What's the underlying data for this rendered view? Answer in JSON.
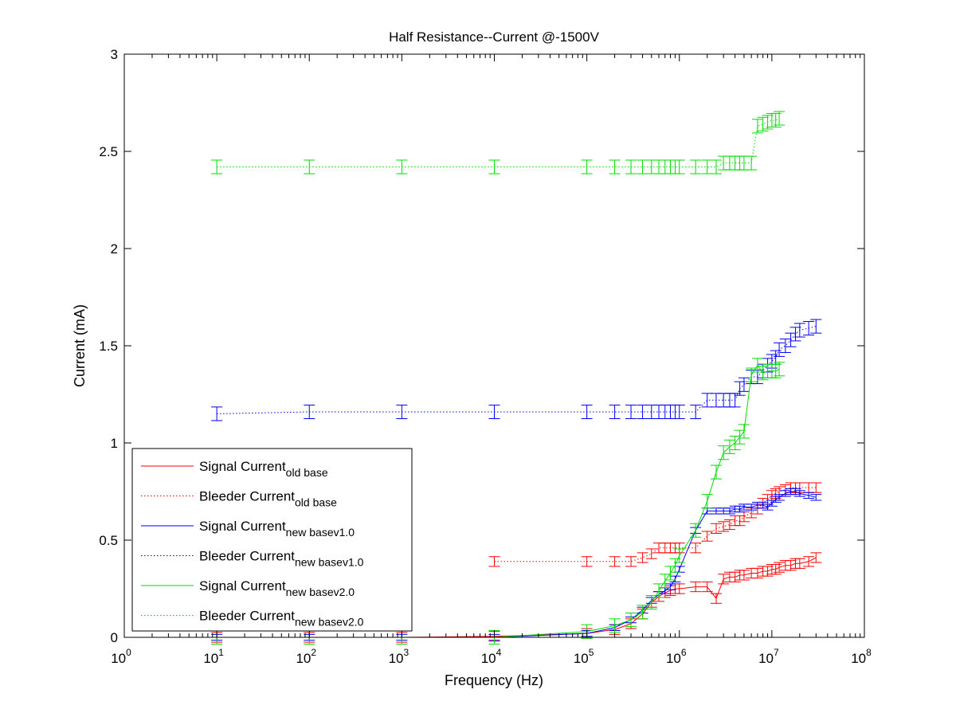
{
  "chart_data": {
    "type": "line",
    "title": "Half Resistance--Current @-1500V",
    "xlabel": "Frequency (Hz)",
    "ylabel": "Current (mA)",
    "xscale": "log",
    "xlim": [
      1,
      100000000
    ],
    "ylim": [
      0,
      3
    ],
    "x_ticks": [
      {
        "base": "10",
        "exp": "0",
        "value": 1
      },
      {
        "base": "10",
        "exp": "1",
        "value": 10
      },
      {
        "base": "10",
        "exp": "2",
        "value": 100
      },
      {
        "base": "10",
        "exp": "3",
        "value": 1000
      },
      {
        "base": "10",
        "exp": "4",
        "value": 10000
      },
      {
        "base": "10",
        "exp": "5",
        "value": 100000
      },
      {
        "base": "10",
        "exp": "6",
        "value": 1000000
      },
      {
        "base": "10",
        "exp": "7",
        "value": 10000000
      },
      {
        "base": "10",
        "exp": "8",
        "value": 100000000
      }
    ],
    "y_ticks": [
      {
        "label": "0",
        "value": 0
      },
      {
        "label": "0.5",
        "value": 0.5
      },
      {
        "label": "1",
        "value": 1
      },
      {
        "label": "1.5",
        "value": 1.5
      },
      {
        "label": "2",
        "value": 2
      },
      {
        "label": "2.5",
        "value": 2.5
      },
      {
        "label": "3",
        "value": 3
      }
    ],
    "grid": false,
    "legend_position": "bottom-left",
    "series": [
      {
        "name": "Signal Current",
        "subscript": "old base",
        "color": "#ff0000",
        "style": "solid",
        "x": [
          10,
          100,
          1000,
          10000,
          100000,
          200000,
          300000,
          400000,
          500000,
          600000,
          700000,
          800000,
          900000,
          1000000,
          1500000,
          2000000,
          2500000,
          3000000,
          3500000,
          4000000,
          4500000,
          5000000,
          6000000,
          7000000,
          8000000,
          9000000,
          10000000,
          11000000,
          12000000,
          14000000,
          16000000,
          18000000,
          20000000,
          25000000,
          30000000
        ],
        "y": [
          0.0,
          0.0,
          0.0,
          0.005,
          0.02,
          0.04,
          0.07,
          0.12,
          0.18,
          0.21,
          0.23,
          0.24,
          0.25,
          0.25,
          0.26,
          0.26,
          0.2,
          0.3,
          0.31,
          0.31,
          0.32,
          0.32,
          0.33,
          0.33,
          0.34,
          0.34,
          0.35,
          0.35,
          0.36,
          0.37,
          0.37,
          0.38,
          0.38,
          0.39,
          0.41
        ],
        "err": 0.025
      },
      {
        "name": "Bleeder Current",
        "subscript": "old base",
        "color": "#ff0000",
        "style": "dotted",
        "x": [
          10000,
          100000,
          200000,
          300000,
          400000,
          500000,
          600000,
          700000,
          800000,
          900000,
          1000000,
          1500000,
          2000000,
          2500000,
          3000000,
          3500000,
          4000000,
          4500000,
          5000000,
          6000000,
          7000000,
          8000000,
          9000000,
          10000000,
          11000000,
          12000000,
          14000000,
          16000000,
          18000000,
          20000000,
          25000000,
          30000000
        ],
        "y": [
          0.39,
          0.39,
          0.39,
          0.39,
          0.41,
          0.43,
          0.46,
          0.46,
          0.46,
          0.46,
          0.46,
          0.46,
          0.52,
          0.56,
          0.57,
          0.58,
          0.6,
          0.6,
          0.62,
          0.64,
          0.66,
          0.69,
          0.71,
          0.73,
          0.74,
          0.75,
          0.76,
          0.77,
          0.77,
          0.77,
          0.77,
          0.77
        ],
        "err": 0.025
      },
      {
        "name": "Signal Current",
        "subscript": "new basev1.0",
        "color": "#0000ff",
        "style": "solid",
        "x": [
          10,
          100,
          1000,
          10000,
          100000,
          200000,
          300000,
          400000,
          500000,
          600000,
          700000,
          800000,
          900000,
          1000000,
          1500000,
          2000000,
          2500000,
          3000000,
          3500000,
          4000000,
          4500000,
          5000000,
          6000000,
          7000000,
          8000000,
          9000000,
          10000000,
          11000000,
          12000000,
          14000000,
          16000000,
          18000000,
          20000000,
          25000000,
          30000000
        ],
        "y": [
          0.0,
          0.0,
          0.0,
          0.0,
          0.02,
          0.05,
          0.09,
          0.14,
          0.19,
          0.22,
          0.24,
          0.26,
          0.3,
          0.35,
          0.55,
          0.65,
          0.65,
          0.65,
          0.65,
          0.66,
          0.66,
          0.67,
          0.67,
          0.68,
          0.68,
          0.67,
          0.69,
          0.71,
          0.72,
          0.74,
          0.75,
          0.75,
          0.74,
          0.73,
          0.72
        ],
        "err": 0.015
      },
      {
        "name": "Bleeder Current",
        "subscript": "new basev1.0",
        "color": "#0000ff",
        "style": "dotted",
        "x": [
          10,
          100,
          1000,
          10000,
          100000,
          200000,
          300000,
          400000,
          500000,
          600000,
          700000,
          800000,
          900000,
          1000000,
          1500000,
          2000000,
          2500000,
          3000000,
          3500000,
          4000000,
          4500000,
          5000000,
          6000000,
          7000000,
          8000000,
          9000000,
          10000000,
          11000000,
          12000000,
          14000000,
          16000000,
          18000000,
          20000000,
          25000000,
          30000000
        ],
        "y": [
          1.15,
          1.16,
          1.16,
          1.16,
          1.16,
          1.16,
          1.16,
          1.16,
          1.16,
          1.16,
          1.16,
          1.16,
          1.16,
          1.16,
          1.16,
          1.22,
          1.22,
          1.22,
          1.22,
          1.22,
          1.28,
          1.3,
          1.34,
          1.34,
          1.37,
          1.4,
          1.42,
          1.44,
          1.48,
          1.5,
          1.53,
          1.56,
          1.58,
          1.59,
          1.6
        ],
        "err": 0.035
      },
      {
        "name": "Signal Current",
        "subscript": "new basev2.0",
        "color": "#00dd00",
        "style": "solid",
        "x": [
          10,
          100,
          1000,
          10000,
          100000,
          200000,
          300000,
          400000,
          500000,
          600000,
          700000,
          800000,
          900000,
          1000000,
          1500000,
          2000000,
          2500000,
          3000000,
          3500000,
          4000000,
          4500000,
          5000000,
          6000000,
          7000000,
          8000000,
          9000000,
          10000000,
          11000000,
          12000000
        ],
        "y": [
          0.0,
          0.0,
          0.0,
          0.0,
          0.03,
          0.06,
          0.09,
          0.13,
          0.18,
          0.24,
          0.29,
          0.33,
          0.37,
          0.42,
          0.55,
          0.7,
          0.85,
          0.95,
          0.98,
          1.0,
          1.03,
          1.06,
          1.35,
          1.4,
          1.36,
          1.37,
          1.37,
          1.37,
          1.38
        ],
        "err": 0.035
      },
      {
        "name": "Bleeder Current",
        "subscript": "new basev2.0",
        "color": "#00dd00",
        "style": "dotted",
        "x": [
          10,
          100,
          1000,
          10000,
          100000,
          200000,
          300000,
          400000,
          500000,
          600000,
          700000,
          800000,
          900000,
          1000000,
          1500000,
          2000000,
          2500000,
          3000000,
          3500000,
          4000000,
          4500000,
          5000000,
          6000000,
          7000000,
          8000000,
          9000000,
          10000000,
          11000000,
          12000000
        ],
        "y": [
          2.42,
          2.42,
          2.42,
          2.42,
          2.42,
          2.42,
          2.42,
          2.42,
          2.42,
          2.42,
          2.42,
          2.42,
          2.42,
          2.42,
          2.42,
          2.42,
          2.42,
          2.44,
          2.44,
          2.44,
          2.44,
          2.44,
          2.44,
          2.63,
          2.64,
          2.65,
          2.66,
          2.66,
          2.67
        ],
        "err": 0.035
      }
    ]
  }
}
